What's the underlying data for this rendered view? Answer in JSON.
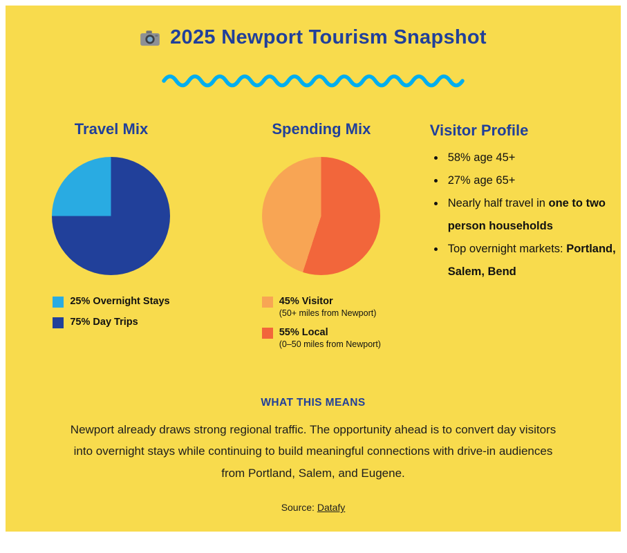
{
  "page": {
    "title": "2025 Newport Tourism Snapshot",
    "what_this_means_label": "WHAT THIS MEANS",
    "summary": "Newport already draws strong regional traffic. The opportunity ahead is to convert day visitors into overnight stays while continuing to build meaningful connections with drive-in audiences from Portland, Salem, and Eugene.",
    "source_label": "Source:",
    "source_link": "Datafy"
  },
  "colors": {
    "background": "#F8DB4D",
    "heading_navy": "#21409A",
    "wave_blue": "#00AEEF",
    "pie_light_blue": "#29ABE2",
    "pie_dark_blue": "#21409A",
    "pie_light_orange": "#F8A554",
    "pie_dark_orange": "#F2663B",
    "body_text": "#1d1d1d"
  },
  "sections": {
    "travel_mix": {
      "heading": "Travel Mix"
    },
    "spending_mix": {
      "heading": "Spending Mix"
    },
    "visitor_profile": {
      "heading": "Visitor Profile",
      "bullets": [
        [
          {
            "t": "58% age 45+",
            "b": false
          }
        ],
        [
          {
            "t": "27% age 65+",
            "b": false
          }
        ],
        [
          {
            "t": "Nearly half travel in ",
            "b": false
          },
          {
            "t": "one to two person households",
            "b": true
          }
        ],
        [
          {
            "t": "Top overnight markets: ",
            "b": false
          },
          {
            "t": "Portland, Salem, Bend",
            "b": true
          }
        ]
      ]
    }
  },
  "chart_data": [
    {
      "type": "pie",
      "title": "Travel Mix",
      "start_angle_deg": 270,
      "slices": [
        {
          "label": "25% Overnight Stays",
          "value": 25,
          "color": "#29ABE2"
        },
        {
          "label": "75% Day Trips",
          "value": 75,
          "color": "#21409A"
        }
      ],
      "legend": [
        {
          "label": "25% Overnight Stays",
          "sub": "",
          "color": "#29ABE2"
        },
        {
          "label": "75% Day Trips",
          "sub": "",
          "color": "#21409A"
        }
      ]
    },
    {
      "type": "pie",
      "title": "Spending Mix",
      "start_angle_deg": 198,
      "slices": [
        {
          "label": "45% Visitor",
          "value": 45,
          "color": "#F8A554"
        },
        {
          "label": "55% Local",
          "value": 55,
          "color": "#F2663B"
        }
      ],
      "legend": [
        {
          "label": "45% Visitor",
          "sub": "(50+ miles from Newport)",
          "color": "#F8A554"
        },
        {
          "label": "55% Local",
          "sub": "(0–50 miles from Newport)",
          "color": "#F2663B"
        }
      ]
    }
  ]
}
